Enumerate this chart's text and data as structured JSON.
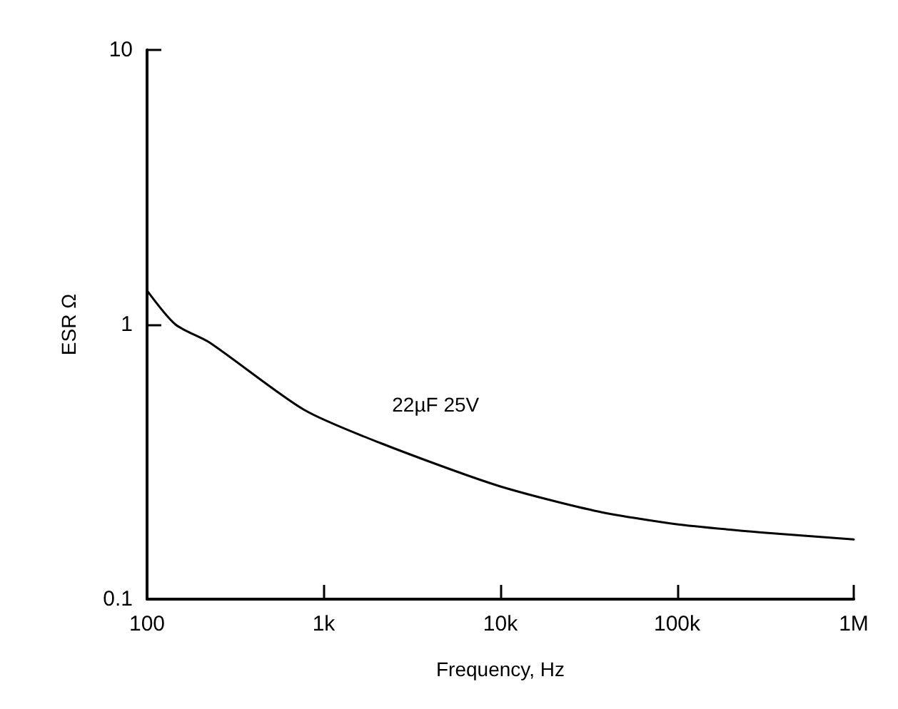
{
  "chart_data": {
    "type": "line",
    "xlabel": "Frequency, Hz",
    "ylabel": "ESR Ω",
    "log": "xy",
    "x": [
      100,
      145,
      226,
      771,
      2100,
      9500,
      34000,
      96000,
      300000,
      1000000
    ],
    "series": [
      {
        "name": "22µF 25V",
        "color": "#000000",
        "values": [
          1.33,
          1.0,
          0.86,
          0.49,
          0.37,
          0.26,
          0.21,
          0.188,
          0.175,
          0.165
        ]
      }
    ],
    "xlim": [
      100,
      1000000
    ],
    "xticks": [
      {
        "value": 100,
        "label": "100"
      },
      {
        "value": 1000,
        "label": "1k"
      },
      {
        "value": 10000,
        "label": "10k"
      },
      {
        "value": 100000,
        "label": "100k"
      },
      {
        "value": 1000000,
        "label": "1M"
      }
    ],
    "ylim": [
      0.1,
      10
    ],
    "yticks": [
      0.1,
      1,
      10
    ],
    "grid": false,
    "legend": false,
    "marker": "none",
    "line_style": "solid"
  }
}
